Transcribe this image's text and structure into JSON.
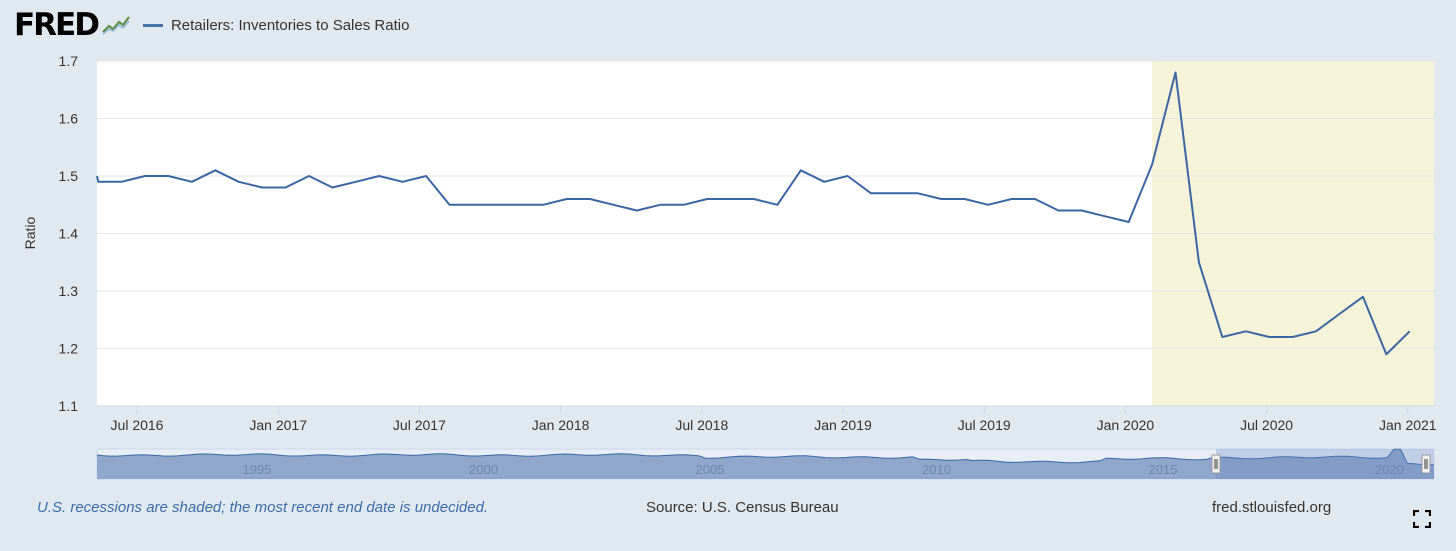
{
  "header": {
    "logo_text": "FRED",
    "series_label": "Retailers: Inventories to Sales Ratio"
  },
  "colors": {
    "line": "#3a67a3",
    "recession": "#f5f3d8",
    "background": "#e1e9f0",
    "plot_bg": "#ffffff",
    "navigator_fill": "#8ea7ca",
    "navigator_line": "#3a67a3"
  },
  "chart_data": {
    "type": "line",
    "title": "Retailers: Inventories to Sales Ratio",
    "ylabel": "Ratio",
    "xlabel": "",
    "ylim": [
      1.1,
      1.7
    ],
    "yticks": [
      "1.1",
      "1.2",
      "1.3",
      "1.4",
      "1.5",
      "1.6",
      "1.7"
    ],
    "xticks": [
      "Jul 2016",
      "Jan 2017",
      "Jul 2017",
      "Jan 2018",
      "Jul 2018",
      "Jan 2019",
      "Jul 2019",
      "Jan 2020",
      "Jul 2020",
      "Jan 2021"
    ],
    "start": "Apr 2016",
    "frequency": "monthly",
    "values": [
      1.5,
      1.49,
      1.49,
      1.5,
      1.5,
      1.49,
      1.51,
      1.49,
      1.48,
      1.48,
      1.5,
      1.48,
      1.49,
      1.5,
      1.49,
      1.5,
      1.45,
      1.45,
      1.45,
      1.45,
      1.45,
      1.46,
      1.46,
      1.45,
      1.44,
      1.45,
      1.45,
      1.46,
      1.46,
      1.46,
      1.45,
      1.51,
      1.49,
      1.5,
      1.47,
      1.47,
      1.47,
      1.46,
      1.46,
      1.45,
      1.46,
      1.46,
      1.44,
      1.44,
      1.43,
      1.42,
      1.52,
      1.68,
      1.35,
      1.22,
      1.23,
      1.22,
      1.22,
      1.23,
      1.26,
      1.29,
      1.19,
      1.23
    ],
    "recession_shading": {
      "from": "Feb 2020",
      "to": "present"
    },
    "grid": true,
    "legend": "top-left",
    "navigator": {
      "labels": [
        "1995",
        "2000",
        "2005",
        "2010",
        "2015",
        "2020"
      ]
    }
  },
  "footer": {
    "note": "U.S. recessions are shaded; the most recent end date is undecided.",
    "source": "Source: U.S. Census Bureau",
    "url": "fred.stlouisfed.org"
  }
}
